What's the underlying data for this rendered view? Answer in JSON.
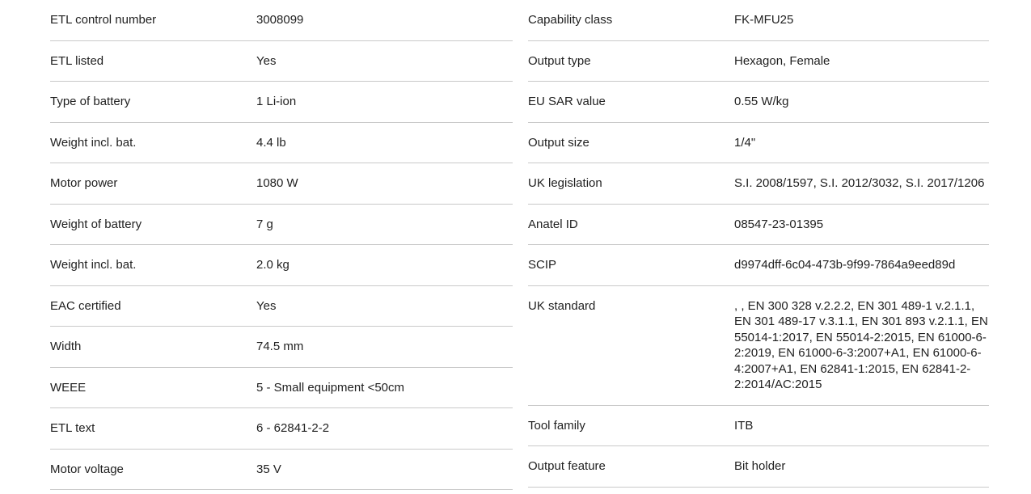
{
  "colors": {
    "background": "#ffffff",
    "text": "#1f1f1f",
    "divider": "#c9c9c9"
  },
  "spec": {
    "left": [
      {
        "label": "ETL control number",
        "value": "3008099"
      },
      {
        "label": "ETL listed",
        "value": "Yes"
      },
      {
        "label": "Type of battery",
        "value": "1 Li-ion"
      },
      {
        "label": "Weight incl. bat.",
        "value": "4.4 lb"
      },
      {
        "label": "Motor power",
        "value": "1080 W"
      },
      {
        "label": "Weight of battery",
        "value": "7 g"
      },
      {
        "label": "Weight incl. bat.",
        "value": "2.0 kg"
      },
      {
        "label": "EAC certified",
        "value": "Yes"
      },
      {
        "label": "Width",
        "value": "74.5 mm"
      },
      {
        "label": "WEEE",
        "value": "5 - Small equipment <50cm"
      },
      {
        "label": "ETL text",
        "value": "6 - 62841-2-2"
      },
      {
        "label": "Motor voltage",
        "value": "35 V"
      }
    ],
    "right": [
      {
        "label": "Capability class",
        "value": "FK-MFU25"
      },
      {
        "label": "Output type",
        "value": "Hexagon, Female"
      },
      {
        "label": "EU SAR value",
        "value": "0.55 W/kg"
      },
      {
        "label": "Output size",
        "value": "1/4\""
      },
      {
        "label": "UK legislation",
        "value": "S.I. 2008/1597, S.I. 2012/3032, S.I. 2017/1206"
      },
      {
        "label": "Anatel ID",
        "value": "08547-23-01395"
      },
      {
        "label": "SCIP",
        "value": "d9974dff-6c04-473b-9f99-7864a9eed89d"
      },
      {
        "label": "UK standard",
        "value": ", , EN 300 328 v.2.2.2, EN 301 489-1 v.2.1.1, EN 301 489-17 v.3.1.1, EN 301 893 v.2.1.1, EN 55014-1:2017, EN 55014-2:2015, EN 61000-6-2:2019, EN 61000-6-3:2007+A1, EN 61000-6-4:2007+A1, EN 62841-1:2015, EN 62841-2-2:2014/AC:2015"
      },
      {
        "label": "Tool family",
        "value": "ITB"
      },
      {
        "label": "Output feature",
        "value": "Bit holder"
      }
    ]
  }
}
